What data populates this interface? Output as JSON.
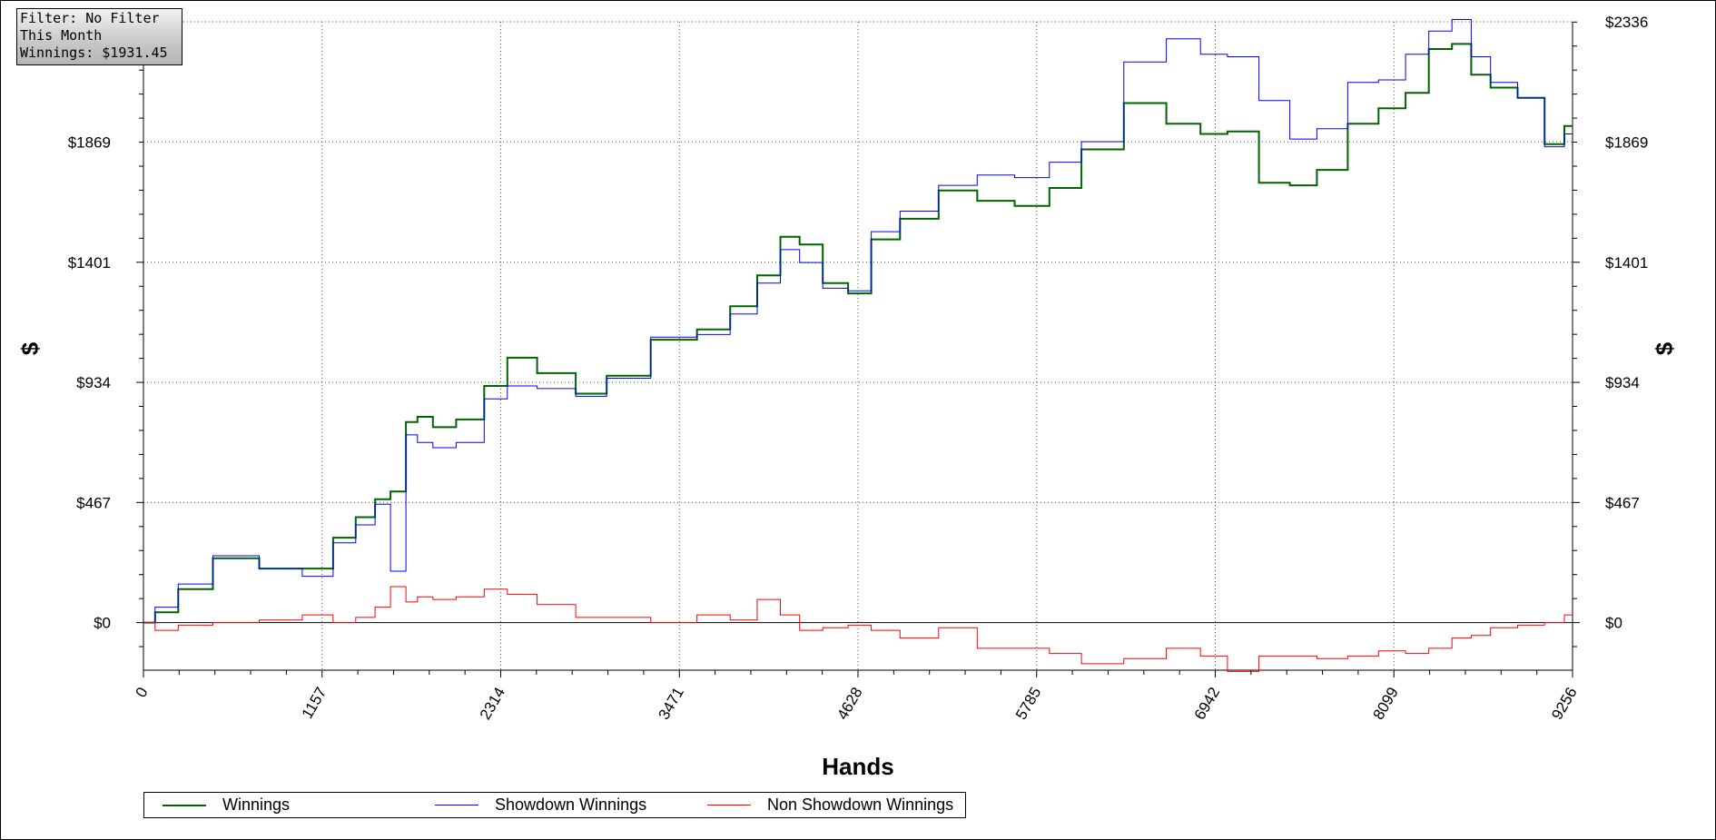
{
  "info": {
    "filter": "Filter: No Filter",
    "period": "This Month",
    "winnings": "Winnings: $1931.45"
  },
  "chart_data": {
    "type": "line",
    "xlabel": "Hands",
    "ylabel": "$",
    "xlim": [
      0,
      9256
    ],
    "ylim": [
      -185,
      2336
    ],
    "x_ticks": [
      0,
      1157,
      2314,
      3471,
      4628,
      5785,
      6942,
      8099,
      9256
    ],
    "y_ticks": [
      0,
      467,
      934,
      1401,
      1869,
      2336
    ],
    "y_tick_labels": [
      "$0",
      "$467",
      "$934",
      "$1401",
      "$1869",
      "$2336"
    ],
    "right_y_tick_labels": [
      "$0",
      "$467",
      "$934",
      "$1401",
      "$1869",
      "$2336"
    ],
    "grid": true,
    "legend_position": "bottom-left",
    "series": [
      {
        "name": "Winnings",
        "color": "#006400",
        "x": [
          0,
          150,
          300,
          600,
          900,
          1157,
          1300,
          1450,
          1550,
          1650,
          1750,
          1800,
          1950,
          2100,
          2314,
          2400,
          2700,
          2900,
          3100,
          3471,
          3700,
          3900,
          4050,
          4200,
          4300,
          4500,
          4628,
          4800,
          5000,
          5300,
          5500,
          5785,
          5950,
          6200,
          6500,
          6750,
          6942,
          7100,
          7350,
          7500,
          7700,
          7900,
          8099,
          8250,
          8400,
          8550,
          8650,
          8800,
          9000,
          9150,
          9256
        ],
        "y": [
          0,
          40,
          130,
          250,
          210,
          210,
          330,
          410,
          480,
          510,
          780,
          800,
          760,
          790,
          920,
          1030,
          970,
          890,
          960,
          1100,
          1140,
          1230,
          1350,
          1500,
          1470,
          1320,
          1280,
          1490,
          1570,
          1680,
          1640,
          1620,
          1690,
          1840,
          2020,
          1940,
          1900,
          1910,
          1710,
          1700,
          1760,
          1940,
          2000,
          2060,
          2230,
          2250,
          2130,
          2080,
          2040,
          1860,
          1931
        ]
      },
      {
        "name": "Showdown Winnings",
        "color": "#0000ff",
        "x": [
          0,
          150,
          300,
          600,
          900,
          1157,
          1300,
          1450,
          1550,
          1650,
          1750,
          1800,
          1950,
          2100,
          2314,
          2400,
          2700,
          2900,
          3100,
          3471,
          3700,
          3900,
          4050,
          4200,
          4300,
          4500,
          4628,
          4800,
          5000,
          5300,
          5500,
          5785,
          5950,
          6200,
          6500,
          6750,
          6942,
          7100,
          7350,
          7500,
          7700,
          7900,
          8099,
          8250,
          8400,
          8550,
          8650,
          8800,
          9000,
          9150,
          9256
        ],
        "y": [
          0,
          60,
          150,
          260,
          210,
          180,
          310,
          380,
          460,
          200,
          730,
          700,
          680,
          700,
          870,
          920,
          910,
          880,
          950,
          1110,
          1120,
          1200,
          1320,
          1450,
          1400,
          1300,
          1290,
          1520,
          1600,
          1700,
          1740,
          1730,
          1790,
          1870,
          2180,
          2270,
          2210,
          2200,
          2030,
          1880,
          1920,
          2100,
          2110,
          2210,
          2300,
          2345,
          2200,
          2100,
          2040,
          1850,
          1900
        ]
      },
      {
        "name": "Non Showdown Winnings",
        "color": "#ff0000",
        "x": [
          0,
          150,
          300,
          600,
          900,
          1157,
          1300,
          1450,
          1550,
          1650,
          1750,
          1800,
          1950,
          2100,
          2314,
          2400,
          2700,
          2900,
          3100,
          3471,
          3700,
          3900,
          4050,
          4200,
          4300,
          4500,
          4628,
          4800,
          5000,
          5300,
          5500,
          5785,
          5950,
          6200,
          6500,
          6750,
          6942,
          7100,
          7350,
          7500,
          7700,
          7900,
          8099,
          8250,
          8400,
          8550,
          8650,
          8800,
          9000,
          9150,
          9256
        ],
        "y": [
          0,
          -30,
          -10,
          0,
          10,
          30,
          0,
          20,
          60,
          140,
          80,
          100,
          90,
          100,
          130,
          110,
          70,
          20,
          20,
          0,
          30,
          10,
          90,
          30,
          -30,
          -20,
          -10,
          -30,
          -60,
          -20,
          -100,
          -100,
          -120,
          -160,
          -140,
          -100,
          -130,
          -190,
          -130,
          -130,
          -140,
          -130,
          -110,
          -120,
          -100,
          -60,
          -50,
          -20,
          -10,
          0,
          30
        ]
      }
    ]
  }
}
